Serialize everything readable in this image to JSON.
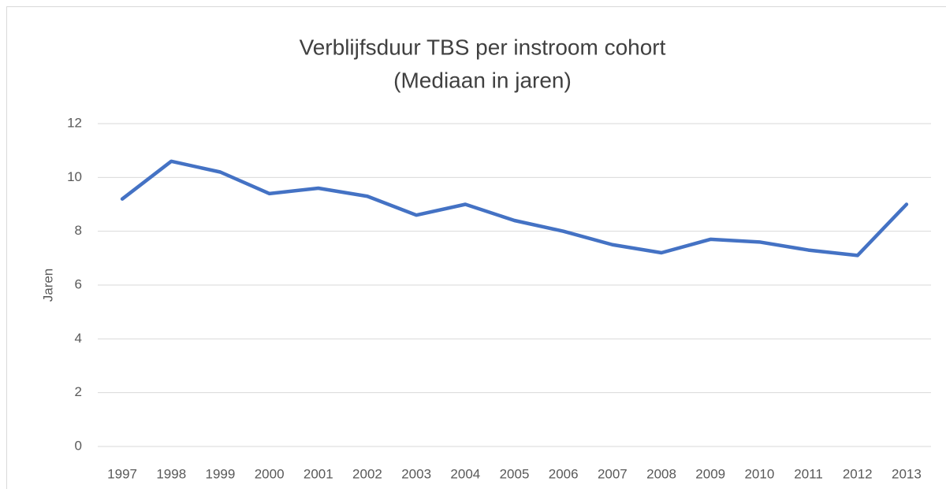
{
  "chart_data": {
    "type": "line",
    "title": "Verblijfsduur TBS per instroom cohort",
    "subtitle": "(Mediaan in jaren)",
    "y_label": "Jaren",
    "categories": [
      "1997",
      "1998",
      "1999",
      "2000",
      "2001",
      "2002",
      "2003",
      "2004",
      "2005",
      "2006",
      "2007",
      "2008",
      "2009",
      "2010",
      "2011",
      "2012",
      "2013"
    ],
    "series": [
      {
        "color": "#4472c4",
        "values": [
          9.2,
          10.6,
          10.2,
          9.4,
          9.6,
          9.3,
          8.6,
          9.0,
          8.4,
          8.0,
          7.5,
          7.2,
          7.7,
          7.6,
          7.3,
          7.1,
          9.0
        ]
      }
    ],
    "ylim": [
      0,
      12
    ],
    "yticks": [
      0,
      2,
      4,
      6,
      8,
      10,
      12
    ],
    "grid": true
  }
}
